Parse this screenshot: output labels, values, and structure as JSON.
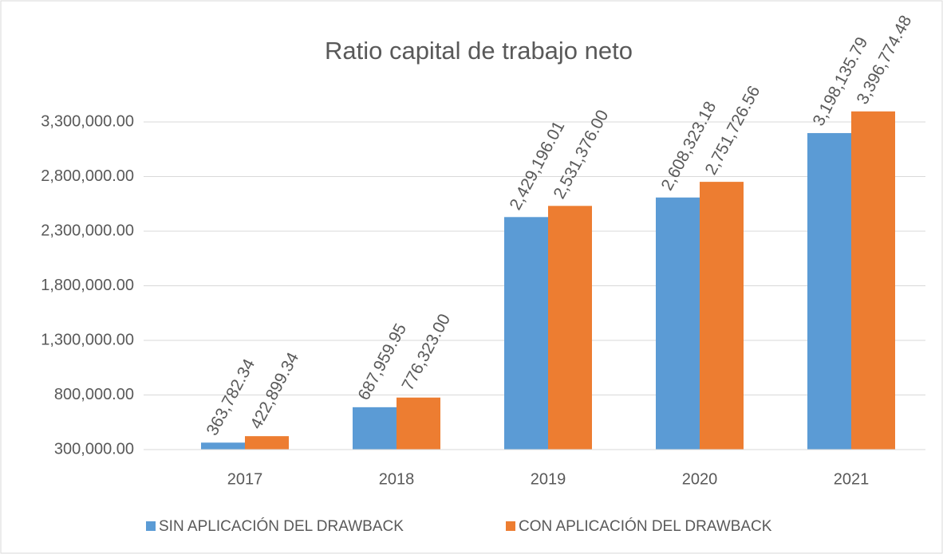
{
  "chart_data": {
    "type": "bar",
    "title": "Ratio capital de trabajo neto",
    "categories": [
      "2017",
      "2018",
      "2019",
      "2020",
      "2021"
    ],
    "series": [
      {
        "name": "SIN APLICACIÓN DEL DRAWBACK",
        "color": "#5b9bd5",
        "values": [
          363782.34,
          687959.95,
          2429196.01,
          2608323.18,
          3198135.79
        ],
        "value_labels": [
          "363,782.34",
          "687,959.95",
          "2,429,196.01",
          "2,608,323.18",
          "3,198,135.79"
        ]
      },
      {
        "name": "CON APLICACIÓN DEL DRAWBACK",
        "color": "#ed7d31",
        "values": [
          422899.34,
          776323.0,
          2531376.0,
          2751726.56,
          3396774.48
        ],
        "value_labels": [
          "422,899.34",
          "776,323.00",
          "2,531,376.00",
          "2,751,726.56",
          "3,396,774.48"
        ]
      }
    ],
    "ylim": [
      300000,
      3400000
    ],
    "yticks": [
      {
        "value": 300000,
        "label": "300,000.00"
      },
      {
        "value": 800000,
        "label": "800,000.00"
      },
      {
        "value": 1300000,
        "label": "1,300,000.00"
      },
      {
        "value": 1800000,
        "label": "1,800,000.00"
      },
      {
        "value": 2300000,
        "label": "2,300,000.00"
      },
      {
        "value": 2800000,
        "label": "2,800,000.00"
      },
      {
        "value": 3300000,
        "label": "3,300,000.00"
      }
    ],
    "grid": true,
    "legend": "bottom"
  }
}
